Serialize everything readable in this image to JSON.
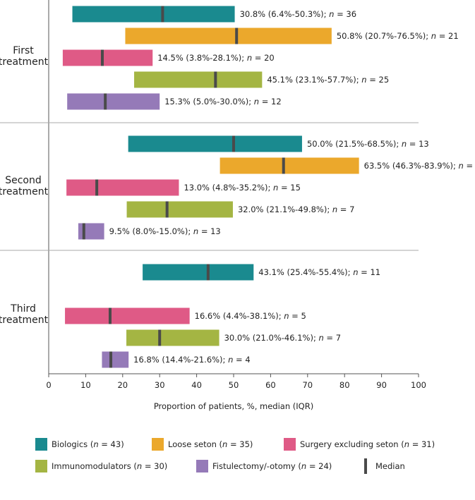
{
  "chart_data": {
    "type": "bar",
    "subtype": "floating-range (IQR) with median marker",
    "xlabel": "Proportion of patients, %, median (IQR)",
    "xlim": [
      0,
      100
    ],
    "xticks": [
      0,
      10,
      20,
      30,
      40,
      50,
      60,
      70,
      80,
      90,
      100
    ],
    "n_label": "n",
    "groups": [
      {
        "label_lines": [
          "First",
          "treatment"
        ],
        "rows": [
          {
            "series": "biologics",
            "median": 30.8,
            "q1": 6.4,
            "q3": 50.3,
            "n": 36,
            "label": "30.8% (6.4%-50.3%); "
          },
          {
            "series": "loose_seton",
            "median": 50.8,
            "q1": 20.7,
            "q3": 76.5,
            "n": 21,
            "label": "50.8% (20.7%-76.5%); "
          },
          {
            "series": "surgery",
            "median": 14.5,
            "q1": 3.8,
            "q3": 28.1,
            "n": 20,
            "label": "14.5% (3.8%-28.1%); "
          },
          {
            "series": "immunomodulators",
            "median": 45.1,
            "q1": 23.1,
            "q3": 57.7,
            "n": 25,
            "label": "45.1% (23.1%-57.7%); "
          },
          {
            "series": "fistulectomy",
            "median": 15.3,
            "q1": 5.0,
            "q3": 30.0,
            "n": 12,
            "label": "15.3% (5.0%-30.0%); "
          }
        ]
      },
      {
        "label_lines": [
          "Second",
          "treatment"
        ],
        "rows": [
          {
            "series": "biologics",
            "median": 50.0,
            "q1": 21.5,
            "q3": 68.5,
            "n": 13,
            "label": "50.0% (21.5%-68.5%); "
          },
          {
            "series": "loose_seton",
            "median": 63.5,
            "q1": 46.3,
            "q3": 83.9,
            "n": 20,
            "label": "63.5% (46.3%-83.9%); "
          },
          {
            "series": "surgery",
            "median": 13.0,
            "q1": 4.8,
            "q3": 35.2,
            "n": 15,
            "label": "13.0% (4.8%-35.2%); "
          },
          {
            "series": "immunomodulators",
            "median": 32.0,
            "q1": 21.1,
            "q3": 49.8,
            "n": 7,
            "label": "32.0% (21.1%-49.8%); "
          },
          {
            "series": "fistulectomy",
            "median": 9.5,
            "q1": 8.0,
            "q3": 15.0,
            "n": 13,
            "label": "9.5% (8.0%-15.0%); "
          }
        ]
      },
      {
        "label_lines": [
          "Third",
          "treatment"
        ],
        "rows": [
          {
            "series": "biologics",
            "median": 43.1,
            "q1": 25.4,
            "q3": 55.4,
            "n": 11,
            "label": "43.1% (25.4%-55.4%); "
          },
          {
            "series": null
          },
          {
            "series": "surgery",
            "median": 16.6,
            "q1": 4.4,
            "q3": 38.1,
            "n": 5,
            "label": "16.6% (4.4%-38.1%); "
          },
          {
            "series": "immunomodulators",
            "median": 30.0,
            "q1": 21.0,
            "q3": 46.1,
            "n": 7,
            "label": "30.0% (21.0%-46.1%); "
          },
          {
            "series": "fistulectomy",
            "median": 16.8,
            "q1": 14.4,
            "q3": 21.6,
            "n": 4,
            "label": "16.8% (14.4%-21.6%); "
          }
        ]
      }
    ],
    "series": {
      "biologics": {
        "color": "#1a8a8f"
      },
      "loose_seton": {
        "color": "#eba82c"
      },
      "surgery": {
        "color": "#df5a86"
      },
      "immunomodulators": {
        "color": "#a4b543"
      },
      "fistulectomy": {
        "color": "#957ab8"
      }
    },
    "median_color": "#4a4a4a",
    "legend": [
      {
        "key": "biologics",
        "name": "Biologics (",
        "n": 43
      },
      {
        "key": "loose_seton",
        "name": "Loose seton (",
        "n": 35
      },
      {
        "key": "surgery",
        "name": "Surgery excluding seton (",
        "n": 31
      },
      {
        "key": "immunomodulators",
        "name": "Immunomodulators (",
        "n": 30
      },
      {
        "key": "fistulectomy",
        "name": "Fistulectomy/-otomy (",
        "n": 24
      },
      {
        "key": "median",
        "name": "Median"
      }
    ]
  }
}
